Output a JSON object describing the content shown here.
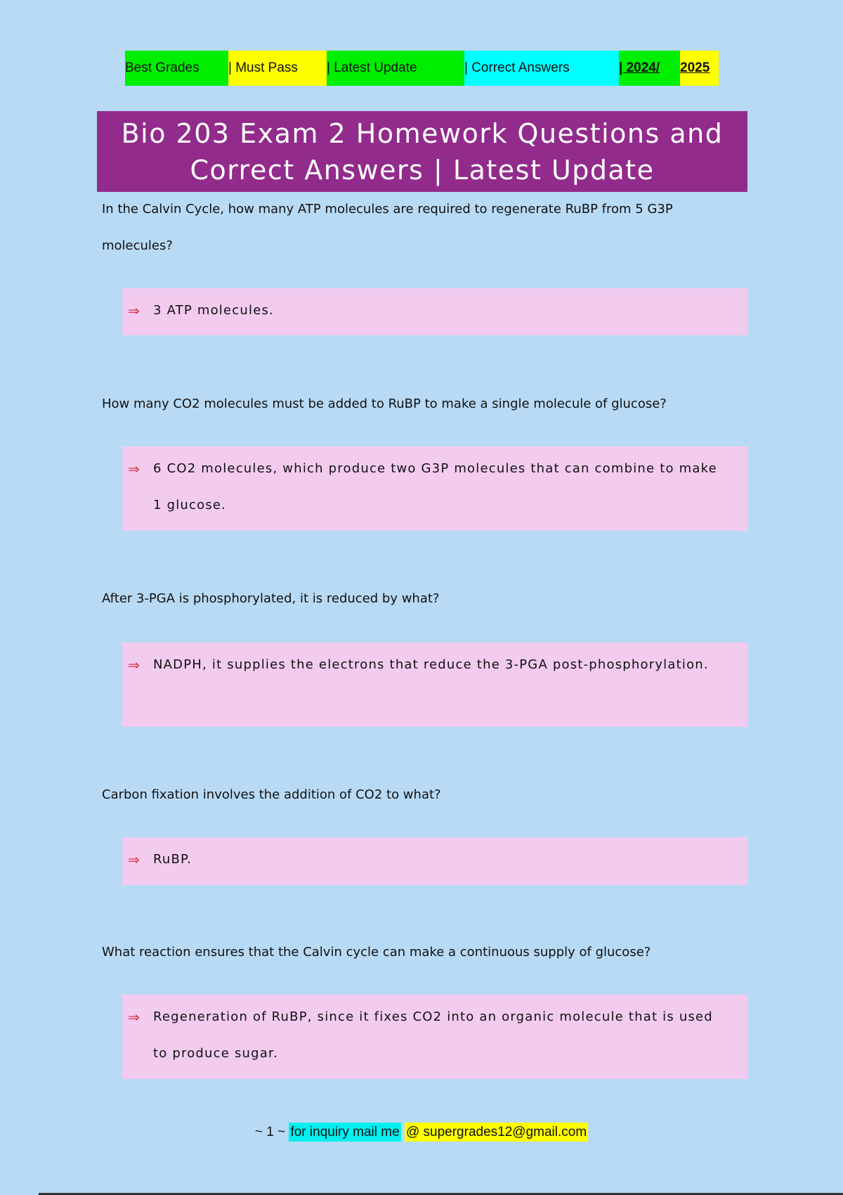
{
  "banner": [
    "Best Grades",
    "| Must Pass",
    "| Latest Update",
    "| Correct Answers",
    "| 2024/",
    "2025"
  ],
  "title": "Bio 203 Exam 2 Homework  Questions and Correct Answers | Latest Update",
  "qa": [
    {
      "question": " In the Calvin Cycle, how many ATP molecules are required to regenerate RuBP from 5 G3P molecules?",
      "answer": "3 ATP molecules."
    },
    {
      "question": "How many CO2 molecules must be added to RuBP to make a single molecule of glucose?",
      "answer": "6 CO2 molecules, which produce two G3P molecules that can combine to make 1 glucose."
    },
    {
      "question": "After 3-PGA is phosphorylated, it is reduced by what?",
      "answer": "NADPH, it supplies the electrons that reduce the 3-PGA post-phosphorylation."
    },
    {
      "question": "Carbon fixation involves the addition of CO2 to what?",
      "answer": "RuBP."
    },
    {
      "question": "What reaction ensures that the Calvin cycle can make a continuous supply of glucose?",
      "answer": "Regeneration of RuBP, since it fixes CO2 into an organic molecule that is used to produce sugar."
    }
  ],
  "arrow_icon": "⇒",
  "footer": {
    "page": "~ 1 ~",
    "inquiry": "for inquiry mail me",
    "email": "@ supergrades12@gmail.com"
  }
}
